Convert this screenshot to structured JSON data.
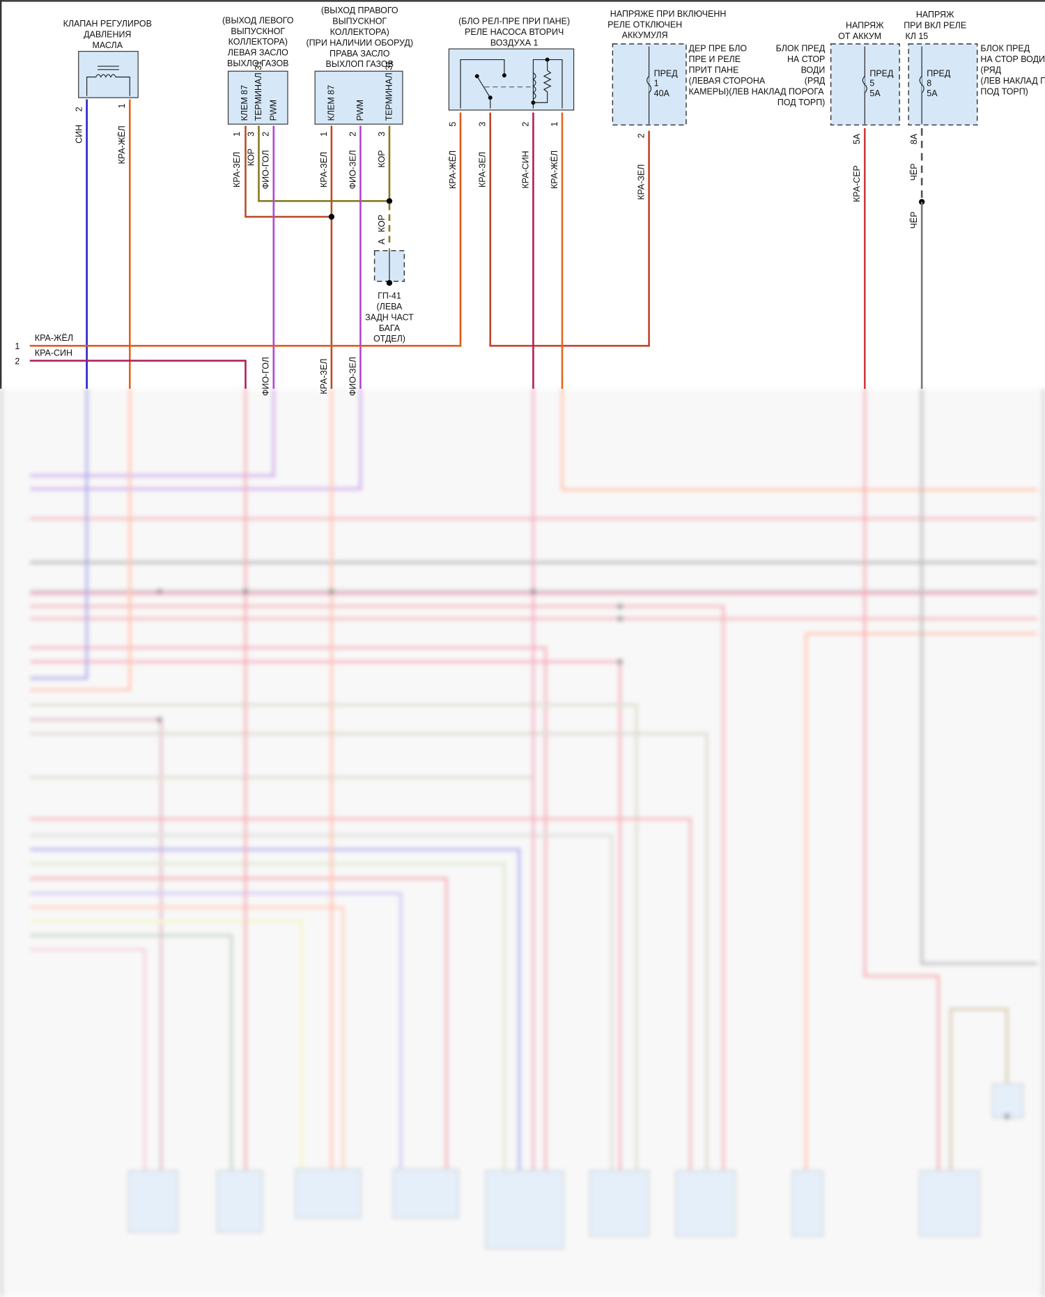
{
  "colors": {
    "wire_blue": "#2424c8",
    "wire_orange": "#e4641c",
    "wire_red_green": "#b5502a",
    "wire_brown": "#8a7a20",
    "wire_violet": "#b444d4",
    "wire_red_blue": "#b0205a",
    "wire_red_gray": "#cc3c3c",
    "wire_black": "#555555",
    "component_fill": "#d6e8f8"
  },
  "oil_valve": {
    "title": [
      "КЛАПАН РЕГУЛИРОВ",
      "ДАВЛЕНИЯ",
      "МАСЛА"
    ],
    "pins": [
      "2",
      "1"
    ],
    "wires": [
      "СИН",
      "КРА-ЖЁЛ"
    ]
  },
  "left_flap": {
    "title": [
      "(ВЫХОД ЛЕВОГО",
      "ВЫПУСКНОГ",
      "КОЛЛЕКТОРА)",
      "ЛЕВАЯ ЗАСЛО",
      "ВЫХЛО ГАЗОВ"
    ],
    "terminals": [
      "КЛЕМ 87",
      "ТЕРМИНАЛ 31",
      "PWM"
    ],
    "pins": [
      "1",
      "3",
      "2"
    ],
    "wires": [
      "КРА-ЗЕЛ",
      "КОР",
      "ФИО-ГОЛ"
    ]
  },
  "right_flap": {
    "title": [
      "(ВЫХОД ПРАВОГО",
      "ВЫПУСКНОГ",
      "КОЛЛЕКТОРА)",
      "(ПРИ НАЛИЧИИ ОБОРУД)",
      "ПРАВА ЗАСЛО",
      "ВЫХЛОП ГАЗОВ"
    ],
    "terminals": [
      "КЛЕМ 87",
      "PWM",
      "ТЕРМИНАЛ 31"
    ],
    "pins": [
      "1",
      "2",
      "3"
    ],
    "wires": [
      "КРА-ЗЕЛ",
      "ФИО-ЗЕЛ",
      "КОР"
    ]
  },
  "ground": {
    "pin": "A",
    "wire": "КОР",
    "label": [
      "ГП-41",
      "(ЛЕВА",
      "ЗАДН ЧАСТ",
      "БАГА",
      "ОТДЕЛ)"
    ]
  },
  "relay": {
    "title": [
      "(БЛО РЕЛ-ПРЕ ПРИ ПАНЕ)",
      "РЕЛЕ НАСОСА ВТОРИЧ",
      "ВОЗДУХА 1"
    ],
    "pins": [
      "5",
      "3",
      "2",
      "1"
    ],
    "wires": [
      "КРА-ЖЁЛ",
      "КРА-ЗЕЛ",
      "КРА-СИН",
      "КРА-ЖЁЛ"
    ]
  },
  "fuse1": {
    "title": [
      "НАПРЯЖЕ ПРИ ВКЛЮЧЕНН",
      "РЕЛЕ ОТКЛЮЧЕН",
      "АККУМУЛЯ"
    ],
    "label": [
      "ПРЕД",
      "1",
      "40А"
    ],
    "pin": "2",
    "wire": "КРА-ЗЕЛ",
    "location": [
      "ДЕР ПРЕ БЛО",
      "ПРЕ И РЕЛЕ",
      "ПРИТ ПАНЕ",
      "(ЛЕВАЯ СТОРОНА",
      "КАМЕРЫ)(ЛЕВ НАКЛАД ПОРОГА"
    ]
  },
  "fuse5": {
    "title": [
      "НАПРЯЖ",
      "ОТ АККУМ"
    ],
    "label": [
      "ПРЕД",
      "5",
      "5А"
    ],
    "pin": "5А",
    "wire": "КРА-СЕР",
    "location": [
      "БЛОК ПРЕД",
      "НА СТОР",
      "ВОДИ",
      "(РЯД",
      "ПОД ТОРП)"
    ]
  },
  "fuse8": {
    "title": [
      "НАПРЯЖ",
      "ПРИ ВКЛ РЕЛЕ",
      "КЛ 15"
    ],
    "label": [
      "ПРЕД",
      "8",
      "5А"
    ],
    "pin": "8А",
    "wires": [
      "ЧЁР",
      "ЧЁР"
    ],
    "location": [
      "БЛОК ПРЕД",
      "НА СТОР ВОДИ",
      "(РЯД",
      "(ЛЕВ НАКЛАД П",
      "ПОД ТОРП)"
    ]
  },
  "side_connectors": [
    {
      "pin": "1",
      "wire": "КРА-ЖЁЛ"
    },
    {
      "pin": "2",
      "wire": "КРА-СИН"
    }
  ],
  "lower_wires": [
    "ФИО-ГОЛ",
    "КРА-ЗЕЛ",
    "ФИО-ЗЕЛ"
  ]
}
